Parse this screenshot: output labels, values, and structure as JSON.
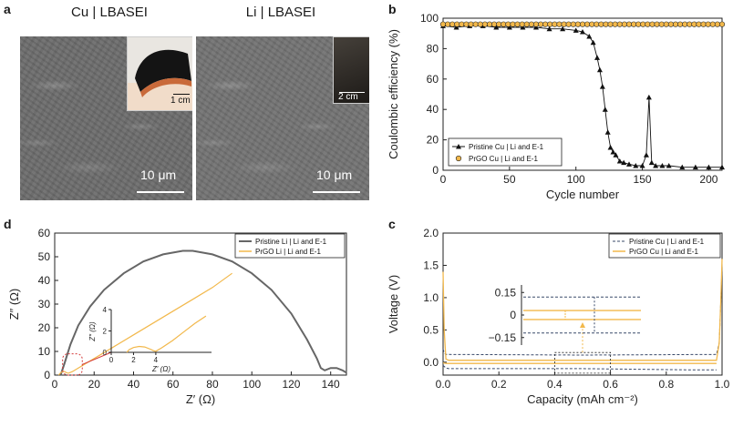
{
  "panels": {
    "a": {
      "letter": "a",
      "left_title": "Cu | LBASEI",
      "right_title": "Li | LBASEI",
      "left_scale": "10 μm",
      "right_scale": "10 μm",
      "left_inset_scale": "1 cm",
      "right_inset_scale": "2 cm"
    },
    "b": {
      "letter": "b"
    },
    "c": {
      "letter": "c"
    },
    "d": {
      "letter": "d"
    }
  },
  "chart_data": [
    {
      "id": "b",
      "type": "line",
      "xlabel": "Cycle number",
      "ylabel": "Coulombic efficiency (%)",
      "xlim": [
        0,
        210
      ],
      "ylim": [
        0,
        100
      ],
      "xticks": [
        0,
        50,
        100,
        150,
        200
      ],
      "yticks": [
        0,
        20,
        40,
        60,
        80,
        100
      ],
      "legend_position": "bottom-left",
      "series": [
        {
          "name": "Pristine Cu | Li and E-1",
          "color": "#111111",
          "marker": "triangle",
          "x": [
            0,
            10,
            20,
            30,
            40,
            50,
            60,
            70,
            80,
            90,
            100,
            105,
            110,
            113,
            116,
            118,
            120,
            122,
            124,
            126,
            128,
            130,
            133,
            136,
            140,
            145,
            150,
            153,
            155,
            157,
            160,
            165,
            170,
            180,
            190,
            200,
            210
          ],
          "y": [
            95,
            94,
            95,
            95,
            94,
            94,
            94,
            94,
            93,
            93,
            92,
            91,
            88,
            84,
            74,
            66,
            55,
            40,
            25,
            15,
            12,
            10,
            6,
            5,
            4,
            3,
            3,
            10,
            48,
            5,
            3,
            3,
            3,
            2,
            2,
            2,
            2
          ]
        },
        {
          "name": "PrGO Cu | Li and E-1",
          "color": "#f2b84b",
          "marker": "circle",
          "x": [
            0,
            20,
            40,
            60,
            80,
            100,
            120,
            140,
            160,
            180,
            200,
            210
          ],
          "y": [
            96,
            96,
            96,
            96,
            96,
            96,
            96,
            96,
            96,
            96,
            96,
            96
          ]
        }
      ]
    },
    {
      "id": "d",
      "type": "line",
      "xlabel": "Z′ (Ω)",
      "ylabel": "Z″ (Ω)",
      "xlim": [
        0,
        148
      ],
      "ylim": [
        0,
        60
      ],
      "xticks": [
        0,
        20,
        40,
        60,
        80,
        100,
        120,
        140
      ],
      "yticks": [
        0,
        10,
        20,
        30,
        40,
        50,
        60
      ],
      "legend_position": "top-right",
      "series": [
        {
          "name": "Pristine Li | Li and E-1",
          "color": "#666666",
          "x": [
            3,
            5,
            8,
            12,
            18,
            25,
            35,
            45,
            55,
            65,
            70,
            80,
            90,
            100,
            110,
            120,
            128,
            133,
            135,
            137,
            140,
            143,
            146,
            148
          ],
          "y": [
            0,
            5,
            13,
            21,
            29,
            36,
            43,
            48,
            51,
            52.5,
            52.5,
            51,
            48,
            43,
            36,
            26,
            15,
            7,
            3,
            2,
            3,
            3,
            2,
            1
          ]
        },
        {
          "name": "PrGO Li | Li and E-1",
          "color": "#f2b84b",
          "x": [
            2,
            3,
            4,
            5,
            6,
            7,
            9,
            12,
            20,
            30,
            40,
            50,
            60,
            70,
            80,
            90
          ],
          "y": [
            0,
            1,
            1.5,
            1.5,
            1,
            0.8,
            1.5,
            3,
            7,
            12,
            17,
            22,
            27,
            32,
            37,
            43
          ]
        }
      ],
      "inset": {
        "xlabel": "Z′ (Ω)",
        "ylabel": "Z″ (Ω)",
        "xticks": [
          0,
          2,
          4
        ],
        "yticks": [
          0,
          2,
          4
        ],
        "xlim": [
          0,
          9
        ],
        "ylim": [
          0,
          4
        ],
        "x": [
          1.4,
          1.6,
          2.0,
          2.5,
          3.0,
          3.5,
          3.8,
          4.0,
          4.5,
          5.5,
          6.5,
          7.5,
          8.5
        ],
        "y": [
          0,
          0.25,
          0.45,
          0.55,
          0.5,
          0.3,
          0.15,
          0.1,
          0.4,
          1.1,
          1.9,
          2.7,
          3.4
        ]
      }
    },
    {
      "id": "c",
      "type": "line",
      "xlabel": "Capacity (mAh cm⁻²)",
      "ylabel": "Voltage (V)",
      "xlim": [
        0,
        1.0
      ],
      "ylim": [
        -0.2,
        2.0
      ],
      "xticks": [
        0.0,
        0.2,
        0.4,
        0.6,
        0.8,
        1.0
      ],
      "xtick_labels": [
        "0.0",
        "0.2",
        "0.4",
        "0.6",
        "0.8",
        "1.0"
      ],
      "yticks": [
        0.0,
        0.5,
        1.0,
        1.5,
        2.0
      ],
      "ytick_labels": [
        "0.0",
        "0.5",
        "1.0",
        "1.5",
        "2.0"
      ],
      "legend_position": "top-right",
      "series": [
        {
          "name": "Pristine Cu | Li and E-1",
          "color": "#3a4a6a",
          "dashed": true,
          "x": [
            0.0,
            0.005,
            0.01,
            0.02,
            0.5,
            0.98,
            0.99,
            0.995,
            1.0
          ],
          "y": [
            0.2,
            0.14,
            0.12,
            0.12,
            0.11,
            0.12,
            0.3,
            0.9,
            1.5
          ],
          "x2": [
            0.0,
            0.01,
            0.02,
            0.5,
            0.9,
            0.98
          ],
          "y2": [
            -0.05,
            -0.09,
            -0.1,
            -0.1,
            -0.12,
            -0.12
          ]
        },
        {
          "name": "PrGO Cu | Li and E-1",
          "color": "#f2b84b",
          "dashed": false,
          "x": [
            0.0,
            0.004,
            0.01,
            0.02,
            0.5,
            0.98,
            0.99,
            0.995,
            1.0
          ],
          "y": [
            1.4,
            0.5,
            0.05,
            0.03,
            0.03,
            0.03,
            0.3,
            0.9,
            1.6
          ],
          "x2": [
            0.0,
            0.01,
            0.02,
            0.5,
            0.98
          ],
          "y2": [
            -0.01,
            -0.02,
            -0.02,
            -0.02,
            -0.02
          ]
        }
      ],
      "inset": {
        "yticks": [
          0.15,
          0,
          -0.15
        ],
        "ytick_labels": [
          "0.15",
          "0",
          "−0.15"
        ]
      }
    }
  ]
}
